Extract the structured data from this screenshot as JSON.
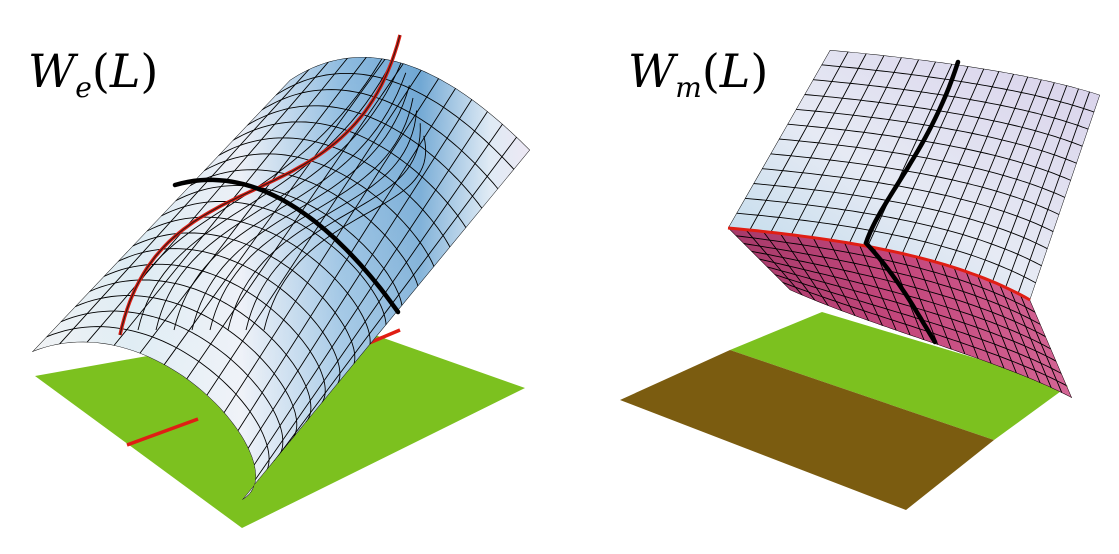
{
  "panels": [
    {
      "label": {
        "base": "W",
        "subscript": "e",
        "argument": "L"
      },
      "colors": {
        "ground": "#7cc11f",
        "surface_light": "#eee9f5",
        "surface_blue": "#6ea6d3",
        "mesh_line": "#000000",
        "critical_curve": "#e01e14",
        "path_curve": "#000000"
      }
    },
    {
      "label": {
        "base": "W",
        "subscript": "m",
        "argument": "L"
      },
      "colors": {
        "ground": "#7cc11f",
        "ground_dark": "#7b5c10",
        "surface_light": "#e7e3f2",
        "surface_blue": "#b5d5ea",
        "lower_sheet": "#c54a7e",
        "mesh_line": "#000000",
        "critical_curve": "#e01e14",
        "path_curve": "#000000"
      }
    }
  ]
}
